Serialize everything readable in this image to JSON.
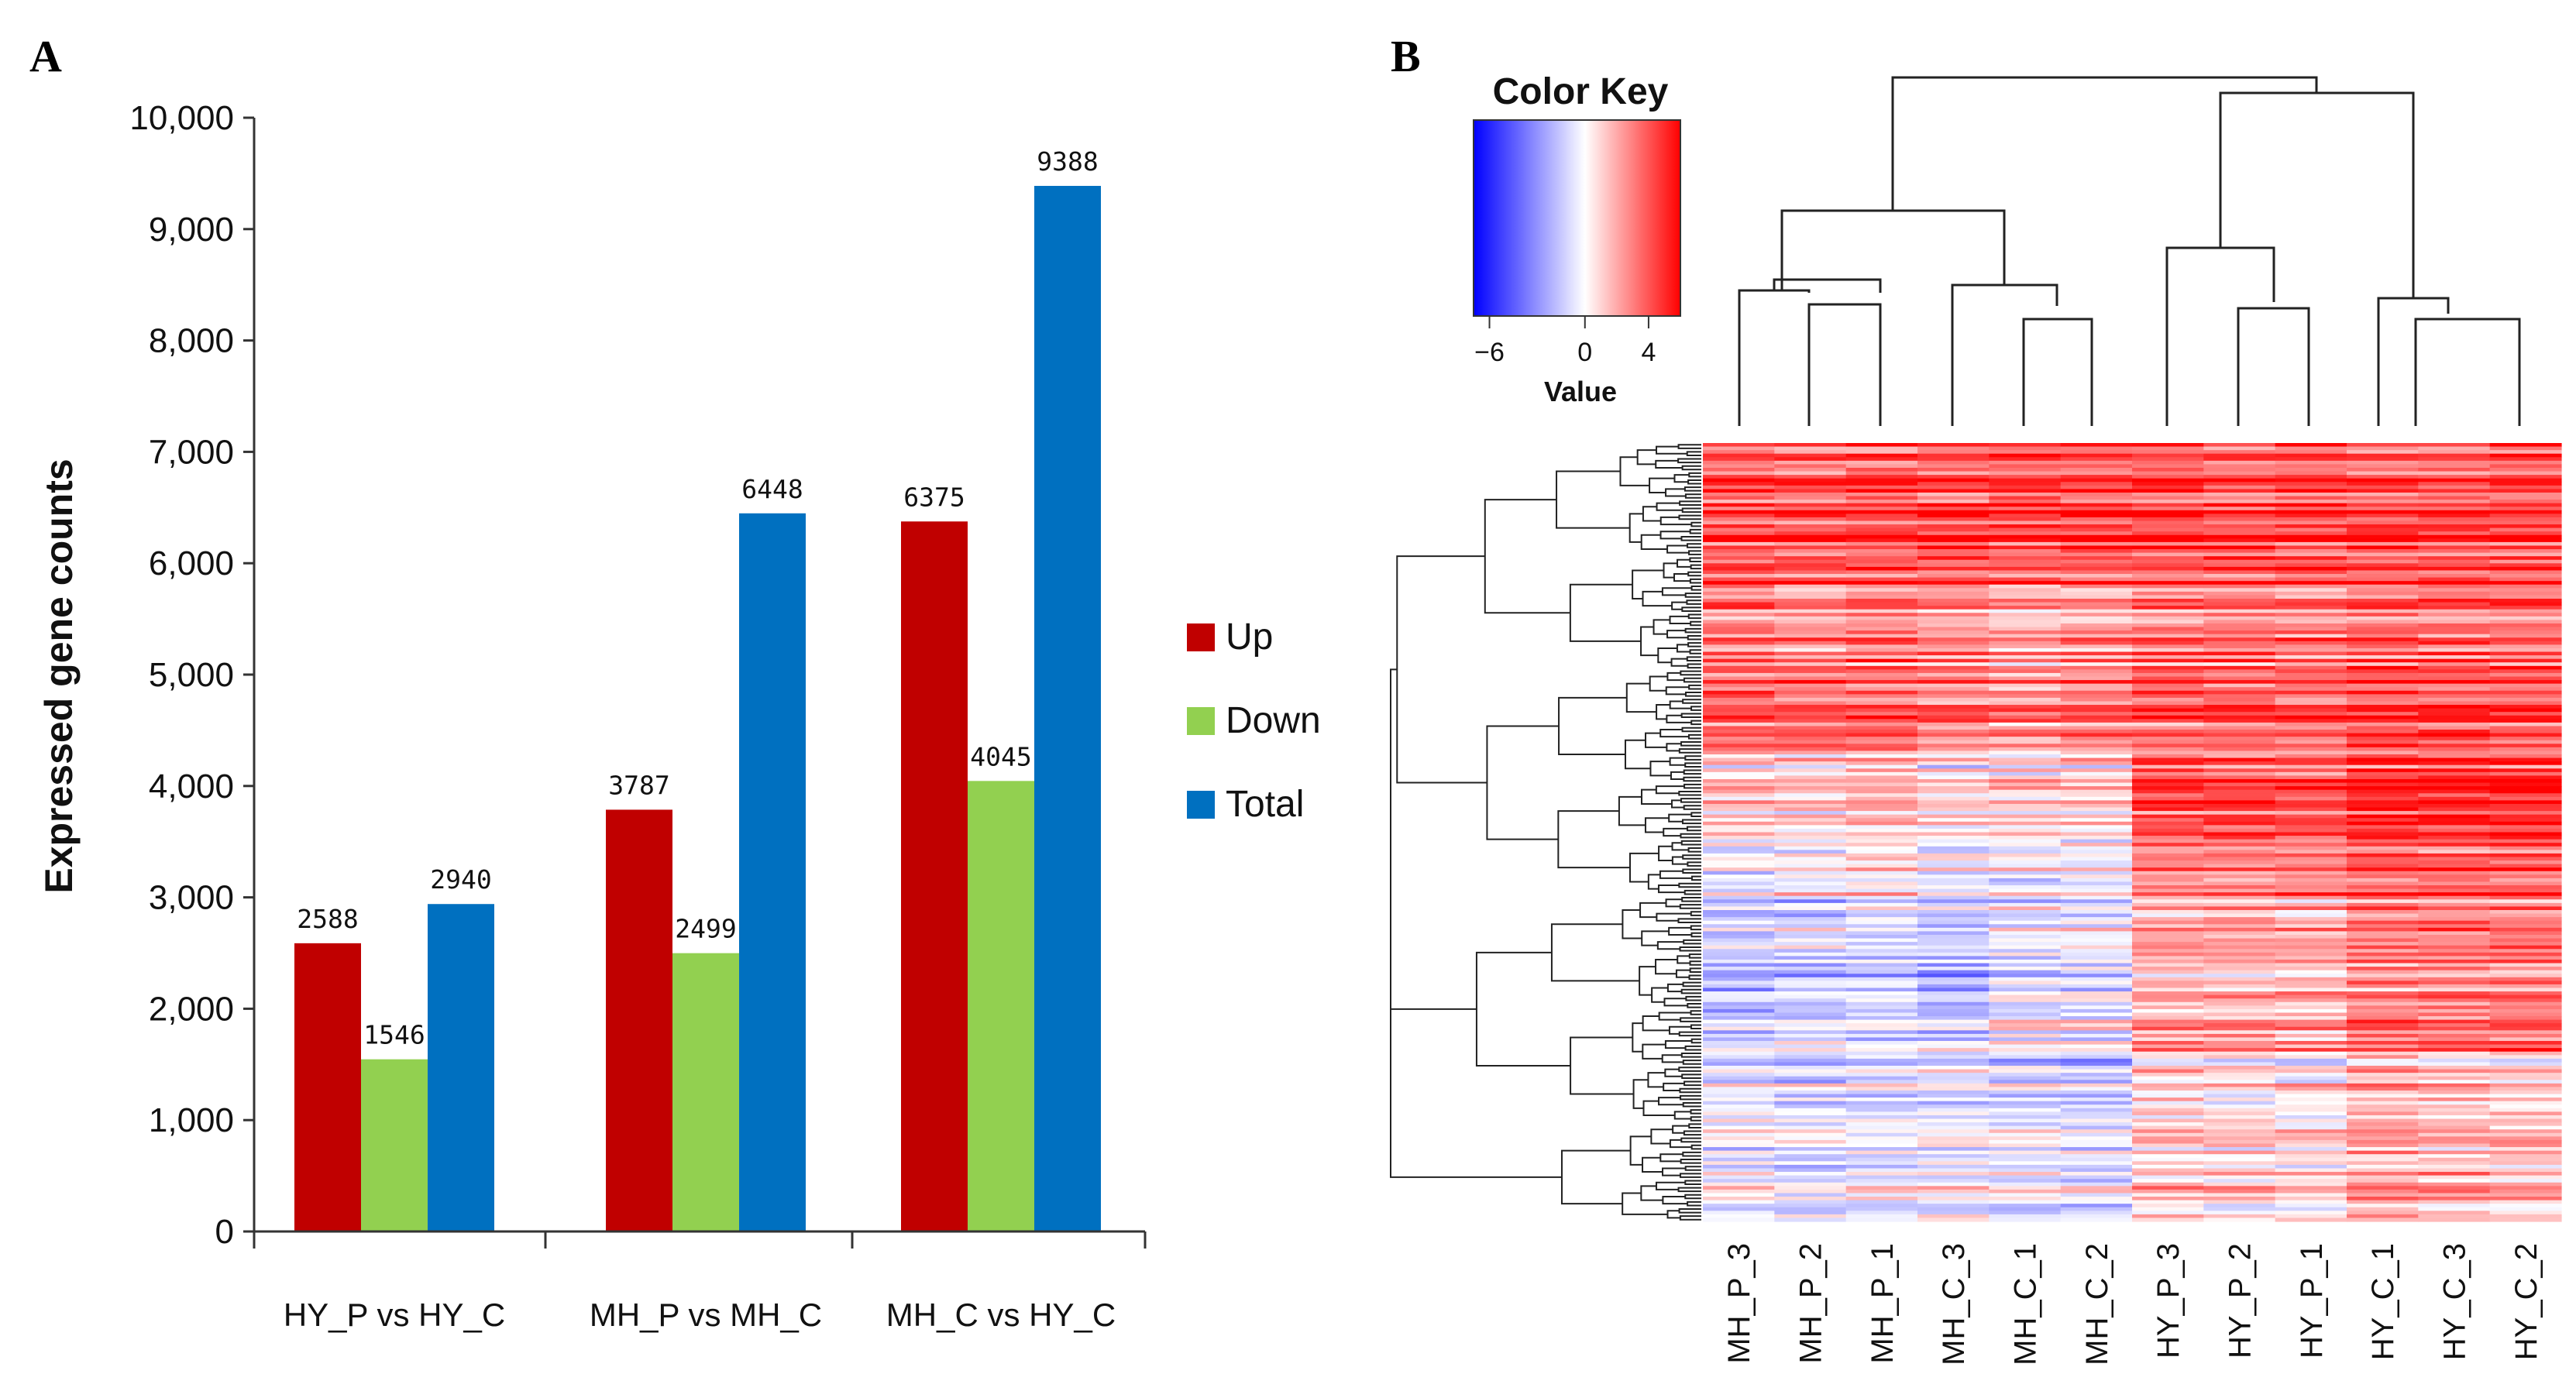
{
  "panels": {
    "a_label": "A",
    "b_label": "B"
  },
  "chart_data": [
    {
      "type": "bar",
      "title": "",
      "xlabel": "",
      "ylabel": "Expressed gene counts",
      "ylim": [
        0,
        10000
      ],
      "yticks": [
        0,
        1000,
        2000,
        3000,
        4000,
        5000,
        6000,
        7000,
        8000,
        9000,
        10000
      ],
      "ytick_labels": [
        "0",
        "1,000",
        "2,000",
        "3,000",
        "4,000",
        "5,000",
        "6,000",
        "7,000",
        "8,000",
        "9,000",
        "10,000"
      ],
      "categories": [
        "HY_P vs HY_C",
        "MH_P vs MH_C",
        "MH_C vs HY_C"
      ],
      "series": [
        {
          "name": "Up",
          "color": "#c00000",
          "values": [
            2588,
            3787,
            6375
          ]
        },
        {
          "name": "Down",
          "color": "#92d050",
          "values": [
            1546,
            2499,
            4045
          ]
        },
        {
          "name": "Total",
          "color": "#0070c0",
          "values": [
            2940,
            6448,
            9388
          ]
        }
      ],
      "legend_position": "right"
    },
    {
      "type": "heatmap",
      "title": "",
      "columns": [
        "MH_P_3",
        "MH_P_2",
        "MH_P_1",
        "MH_C_3",
        "MH_C_1",
        "MH_C_2",
        "HY_P_3",
        "HY_P_2",
        "HY_P_1",
        "HY_C_1",
        "HY_C_3",
        "HY_C_2"
      ],
      "color_key": {
        "title": "Color Key",
        "xlabel": "Value",
        "range": [
          -7,
          6
        ],
        "ticks": [
          -6,
          0,
          4
        ],
        "tick_labels": [
          "−6",
          "0",
          "4"
        ],
        "low_color": "#0000ff",
        "mid_color": "#ffffff",
        "high_color": "#ff0000"
      }
    }
  ]
}
